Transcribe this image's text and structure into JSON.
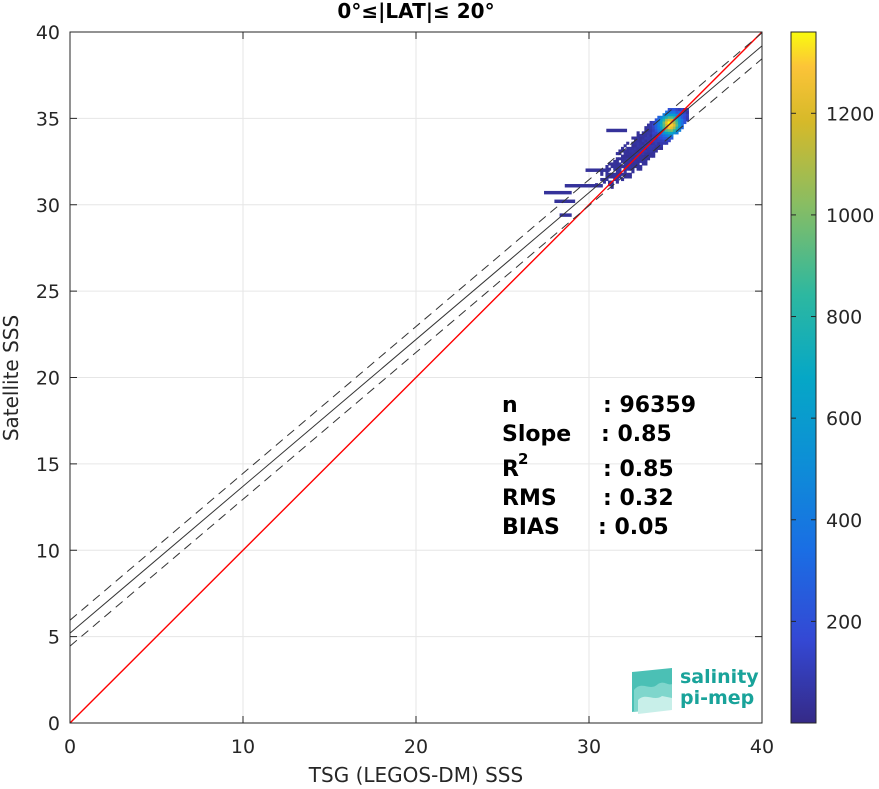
{
  "chart_data": {
    "type": "heatmap",
    "title": "0°≤|LAT|≤ 20°",
    "xlabel": "TSG (LEGOS-DM) SSS",
    "ylabel": "Satellite SSS",
    "xlim": [
      0,
      40
    ],
    "ylim": [
      0,
      40
    ],
    "xticks": [
      "0",
      "10",
      "20",
      "30",
      "40"
    ],
    "yticks": [
      "0",
      "5",
      "10",
      "15",
      "20",
      "25",
      "30",
      "35",
      "40"
    ],
    "grid": true,
    "colorbar": {
      "ticks": [
        "200",
        "400",
        "600",
        "800",
        "1000",
        "1200"
      ],
      "range": [
        0,
        1360
      ],
      "colormap": "parula"
    },
    "lines": [
      {
        "name": "one-to-one",
        "color": "#ff0000",
        "style": "solid",
        "slope": 1.0,
        "intercept": 0.0
      },
      {
        "name": "regression",
        "color": "#333333",
        "style": "solid",
        "slope": 0.85,
        "intercept": 5.2
      },
      {
        "name": "regression-upper",
        "color": "#333333",
        "style": "dashed",
        "slope": 0.85,
        "intercept": 5.95
      },
      {
        "name": "regression-lower",
        "color": "#333333",
        "style": "dashed",
        "slope": 0.85,
        "intercept": 4.45
      }
    ],
    "density_core": {
      "x_range": [
        27.5,
        35.6
      ],
      "y_range": [
        29.3,
        35.5
      ],
      "peak": [
        34.6,
        34.6
      ],
      "peak_count": 1360
    },
    "stats": {
      "n_label": "n",
      "n_value": ": 96359",
      "slope_label": "Slope",
      "slope_value": ": 0.85",
      "r2_label": "R",
      "r2_sup": "2",
      "r2_value": ": 0.85",
      "rms_label": "RMS",
      "rms_value": ": 0.32",
      "bias_label": "BIAS",
      "bias_value": ": 0.05"
    }
  },
  "logo": {
    "line1": "salinity",
    "line2": "pi-mep"
  },
  "colors": {
    "one_to_one": "#ff0000",
    "regression": "#333333",
    "logo": "#19a39a"
  }
}
